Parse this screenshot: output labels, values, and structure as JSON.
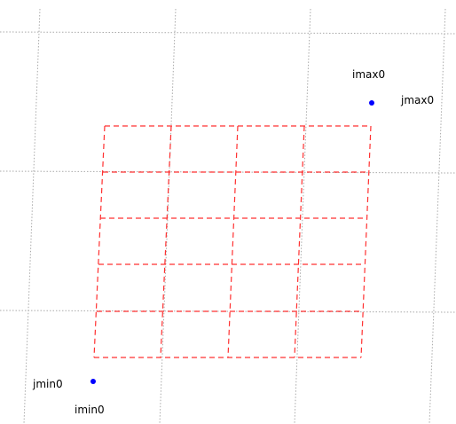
{
  "labels": {
    "imax": "imax0",
    "jmax": "jmax0",
    "imin": "imin0",
    "jmin": "jmin0"
  },
  "colors": {
    "background_grid": "#a9a9a9",
    "index_grid": "#ff3030",
    "corner_points": "#0000ff",
    "label_text": "#000000"
  },
  "grid": {
    "background_style": "dotted",
    "index_grid_style": "dashed",
    "index_grid_columns": 4,
    "index_grid_rows": 5
  }
}
